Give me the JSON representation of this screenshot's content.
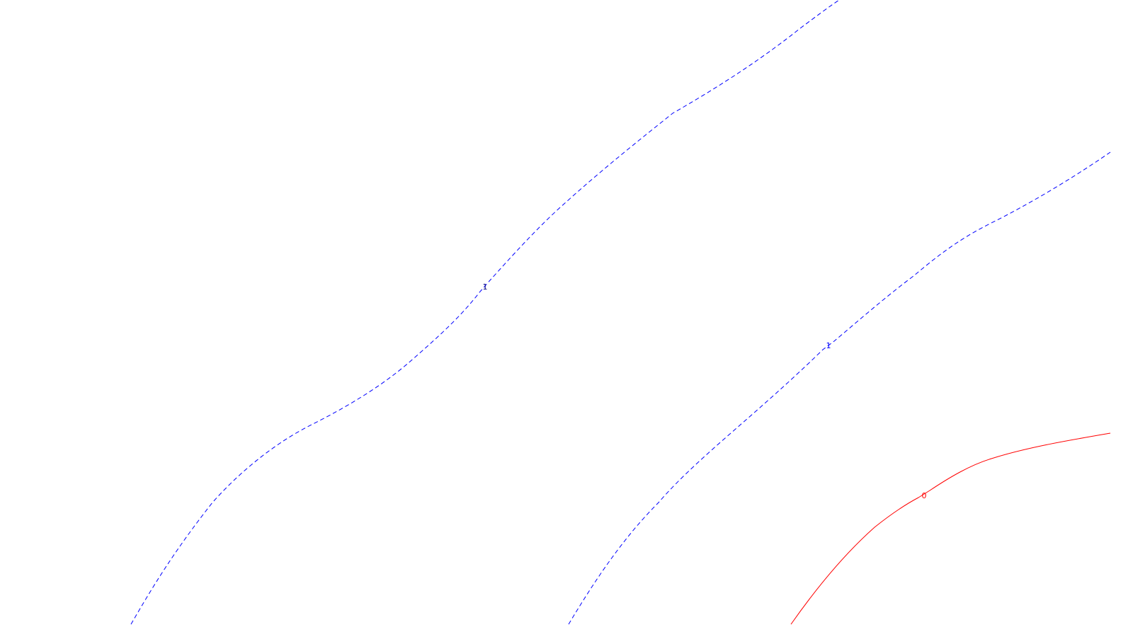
{
  "colors": {
    "background": "#ffffff",
    "contour_positive": "#0000ff",
    "contour_zero": "#ff0000",
    "label_dark": "#000080"
  },
  "contours": [
    {
      "id": "contour-a",
      "level": "1",
      "style": "dashed",
      "color_key": "contour_positive",
      "label_color_key": "label_dark"
    },
    {
      "id": "contour-b",
      "level": "1",
      "style": "dashed",
      "color_key": "contour_positive",
      "label_color_key": "contour_positive"
    },
    {
      "id": "contour-c",
      "level": "0",
      "style": "solid",
      "color_key": "contour_zero",
      "label_color_key": "contour_zero"
    }
  ]
}
